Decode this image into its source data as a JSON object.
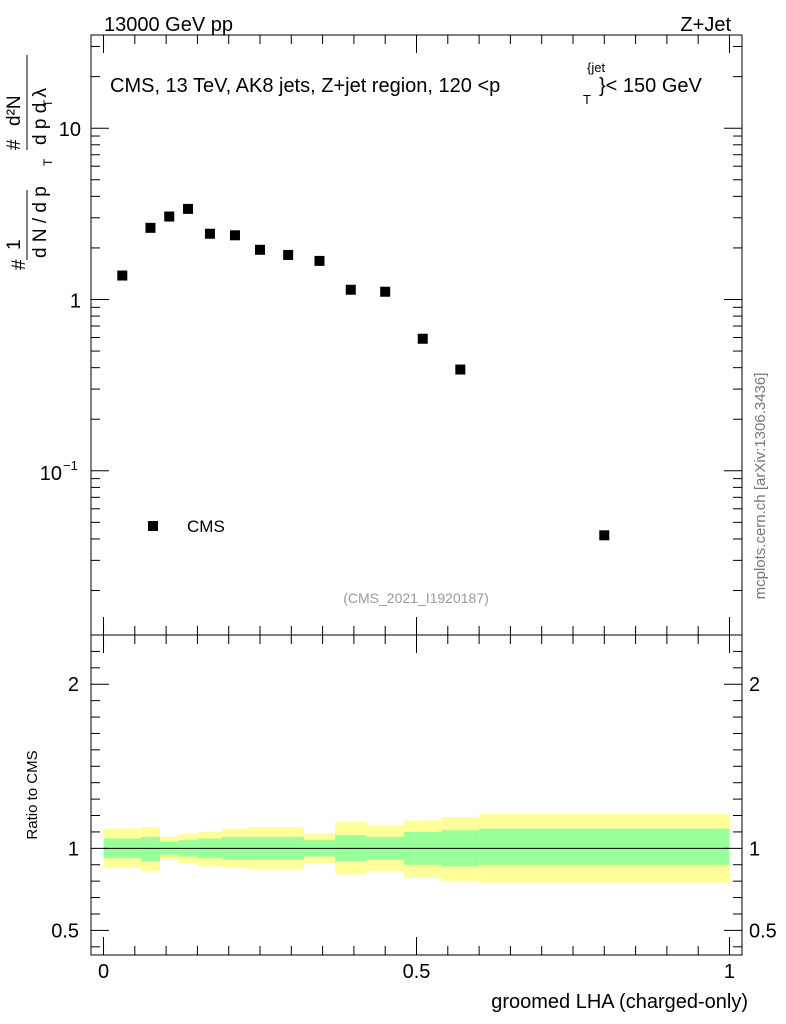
{
  "header": {
    "left": "13000 GeV pp",
    "right": "Z+Jet"
  },
  "chart_data": [
    {
      "type": "scatter",
      "panel": "main",
      "title": "CMS, 13 TeV, AK8 jets, Z+jet region, 120 <p_T^{jet}< 150 GeV",
      "title_parts": {
        "main": "CMS, 13 TeV, AK8 jets, Z+jet region, 120 <p",
        "sup": "{jet",
        "sub": "T",
        "tail": "}< 150 GeV"
      },
      "ylabel": "1/(dN/dp_T) d²N/(dp_T dλ)",
      "ylabel_parts": {
        "frac_num": "1",
        "frac_den": "d N / d p",
        "hash1": "#",
        "hash2": "#",
        "num": "d²N",
        "den": "d p  d λ",
        "sub": "T"
      },
      "yscale": "log",
      "ylim": [
        0.011,
        35
      ],
      "xlim": [
        -0.02,
        1.02
      ],
      "yticks": [
        {
          "value": 0.1,
          "base": "10",
          "exp": "−1"
        },
        {
          "value": 1,
          "label": "1"
        },
        {
          "value": 10,
          "label": "10"
        }
      ],
      "legend": {
        "entry": "CMS",
        "position": "bottom-left"
      },
      "watermark": "(CMS_2021_I1920187)",
      "series": [
        {
          "name": "CMS",
          "x": [
            0.03,
            0.075,
            0.105,
            0.135,
            0.17,
            0.21,
            0.25,
            0.295,
            0.345,
            0.395,
            0.45,
            0.51,
            0.57,
            0.8
          ],
          "y": [
            1.38,
            2.62,
            3.05,
            3.38,
            2.42,
            2.37,
            1.95,
            1.82,
            1.68,
            1.14,
            1.11,
            0.59,
            0.39,
            0.042
          ]
        }
      ]
    },
    {
      "type": "area",
      "panel": "ratio",
      "ylabel": "Ratio to CMS",
      "xlabel": "groomed LHA (charged-only)",
      "ylim": [
        0.35,
        2.3
      ],
      "xlim": [
        -0.02,
        1.02
      ],
      "xticks": [
        {
          "value": 0,
          "label": "0"
        },
        {
          "value": 0.5,
          "label": "0.5"
        },
        {
          "value": 1,
          "label": "1"
        }
      ],
      "yticks": [
        {
          "value": 0.5,
          "label": "0.5"
        },
        {
          "value": 1,
          "label": "1"
        },
        {
          "value": 2,
          "label": "2"
        }
      ],
      "reference_line": 1,
      "bands": {
        "edges": [
          0,
          0.06,
          0.09,
          0.12,
          0.15,
          0.19,
          0.23,
          0.27,
          0.32,
          0.37,
          0.42,
          0.48,
          0.54,
          0.6,
          1.0
        ],
        "inner_low": [
          0.94,
          0.92,
          0.96,
          0.95,
          0.94,
          0.93,
          0.93,
          0.93,
          0.95,
          0.92,
          0.93,
          0.9,
          0.89,
          0.9
        ],
        "inner_high": [
          1.06,
          1.07,
          1.04,
          1.05,
          1.06,
          1.07,
          1.07,
          1.07,
          1.05,
          1.08,
          1.07,
          1.1,
          1.11,
          1.12
        ],
        "outer_low": [
          0.88,
          0.86,
          0.93,
          0.91,
          0.89,
          0.88,
          0.87,
          0.87,
          0.91,
          0.84,
          0.86,
          0.82,
          0.8,
          0.79
        ],
        "outer_high": [
          1.12,
          1.13,
          1.07,
          1.09,
          1.1,
          1.12,
          1.13,
          1.13,
          1.09,
          1.16,
          1.14,
          1.17,
          1.19,
          1.21
        ],
        "inner_color": "#99ff99",
        "outer_color": "#ffff99"
      }
    }
  ],
  "side_label": "mcplots.cern.ch [arXiv:1306.3436]"
}
